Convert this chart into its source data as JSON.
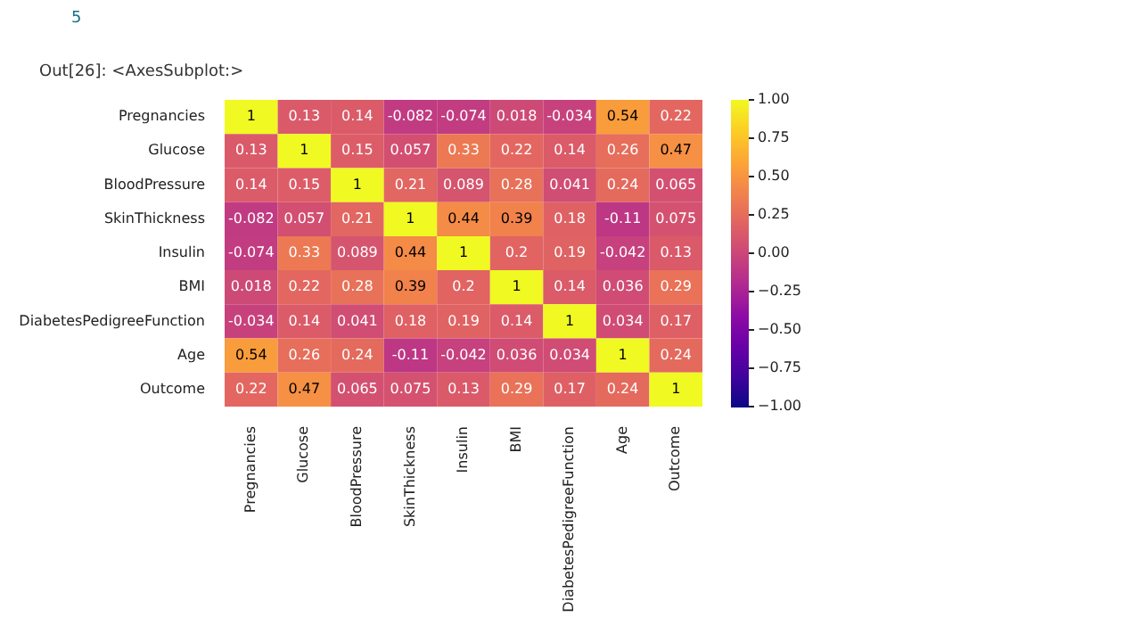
{
  "chart_data": {
    "type": "heatmap",
    "annotations": [
      "5",
      "Out[26]: <AxesSubplot:>"
    ],
    "categories": [
      "Pregnancies",
      "Glucose",
      "BloodPressure",
      "SkinThickness",
      "Insulin",
      "BMI",
      "DiabetesPedigreeFunction",
      "Age",
      "Outcome"
    ],
    "y_categories": [
      "Pregnancies",
      "Glucose",
      "BloodPressure",
      "SkinThickness",
      "Insulin",
      "BMI",
      "DiabetesPedigreeFunction",
      "Age",
      "Outcome"
    ],
    "cells": [
      [
        1,
        0.13,
        0.14,
        -0.082,
        -0.074,
        0.018,
        -0.034,
        0.54,
        0.22
      ],
      [
        0.13,
        1,
        0.15,
        0.057,
        0.33,
        0.22,
        0.14,
        0.26,
        0.47
      ],
      [
        0.14,
        0.15,
        1,
        0.21,
        0.089,
        0.28,
        0.041,
        0.24,
        0.065
      ],
      [
        -0.082,
        0.057,
        0.21,
        1,
        0.44,
        0.39,
        0.18,
        -0.11,
        0.075
      ],
      [
        -0.074,
        0.33,
        0.089,
        0.44,
        1,
        0.2,
        0.19,
        -0.042,
        0.13
      ],
      [
        0.018,
        0.22,
        0.28,
        0.39,
        0.2,
        1,
        0.14,
        0.036,
        0.29
      ],
      [
        -0.034,
        0.14,
        0.041,
        0.18,
        0.19,
        0.14,
        1,
        0.034,
        0.17
      ],
      [
        0.54,
        0.26,
        0.24,
        -0.11,
        -0.042,
        0.036,
        0.034,
        1,
        0.24
      ],
      [
        0.22,
        0.47,
        0.065,
        0.075,
        0.13,
        0.29,
        0.17,
        0.24,
        1
      ]
    ],
    "data_labels": true,
    "clim": [
      -1,
      1
    ],
    "cticks": [
      {
        "value": 1,
        "label": "1.00"
      },
      {
        "value": 0.75,
        "label": "0.75"
      },
      {
        "value": 0.5,
        "label": "0.50"
      },
      {
        "value": 0.25,
        "label": "0.25"
      },
      {
        "value": 0,
        "label": "0.00"
      },
      {
        "value": -0.25,
        "label": "−0.25"
      },
      {
        "value": -0.5,
        "label": "−0.50"
      },
      {
        "value": -0.75,
        "label": "−0.75"
      },
      {
        "value": -1,
        "label": "−1.00"
      }
    ]
  }
}
